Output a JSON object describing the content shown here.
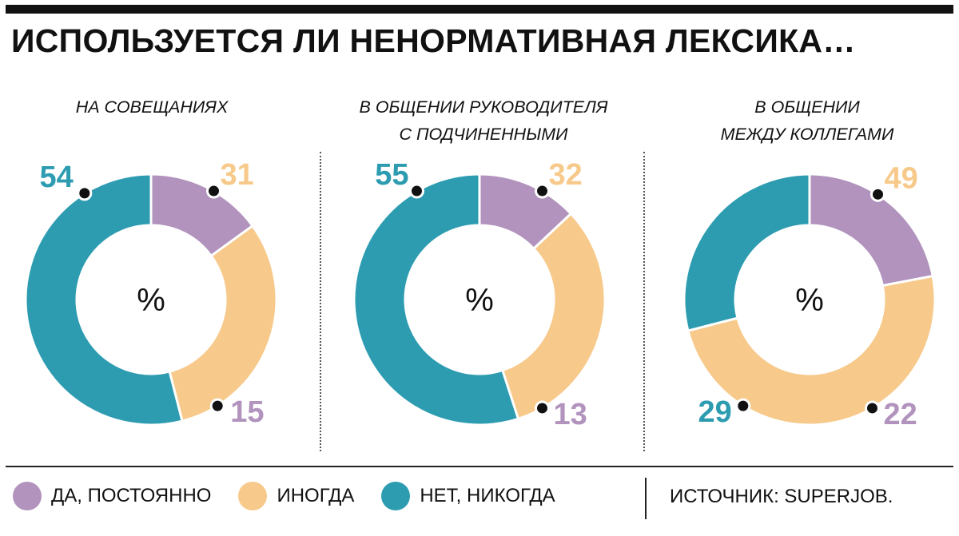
{
  "title": "ИСПОЛЬЗУЕТСЯ ЛИ НЕНОРМАТИВНАЯ ЛЕКСИКА…",
  "colors": {
    "yes": "#B193BD",
    "sometimes": "#F7C98A",
    "never": "#2D9CB1"
  },
  "legend": [
    {
      "label": "ДА, ПОСТОЯННО",
      "color": "#B193BD"
    },
    {
      "label": "ИНОГДА",
      "color": "#F7C98A"
    },
    {
      "label": "НЕТ, НИКОГДА",
      "color": "#2D9CB1"
    }
  ],
  "source": "ИСТОЧНИК: SUPERJOB.",
  "chart_data": [
    {
      "type": "pie",
      "title": "НА СОВЕЩАНИЯХ",
      "center_label": "%",
      "categories": [
        "ДА, ПОСТОЯННО",
        "ИНОГДА",
        "НЕТ, НИКОГДА"
      ],
      "values": [
        15,
        31,
        54
      ]
    },
    {
      "type": "pie",
      "title": "В ОБЩЕНИИ РУКОВОДИТЕЛЯ\nС ПОДЧИНЕННЫМИ",
      "center_label": "%",
      "categories": [
        "ДА, ПОСТОЯННО",
        "ИНОГДА",
        "НЕТ, НИКОГДА"
      ],
      "values": [
        13,
        32,
        55
      ]
    },
    {
      "type": "pie",
      "title": "В ОБЩЕНИИ\nМЕЖДУ КОЛЛЕГАМИ",
      "center_label": "%",
      "categories": [
        "ДА, ПОСТОЯННО",
        "ИНОГДА",
        "НЕТ, НИКОГДА"
      ],
      "values": [
        22,
        49,
        29
      ]
    }
  ]
}
